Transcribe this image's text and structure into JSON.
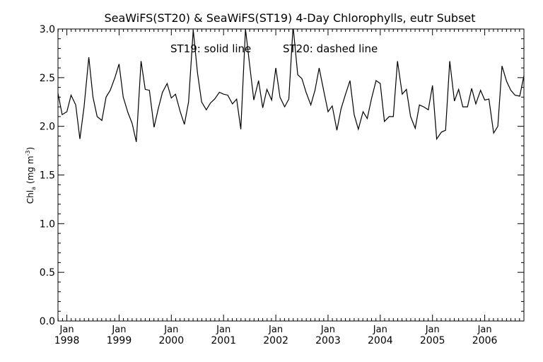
{
  "chart_data": {
    "type": "line",
    "title": "SeaWiFS(ST20) & SeaWiFS(ST19) 4-Day Chlorophylls, eutr Subset",
    "annotation_solid": "ST19: solid line",
    "annotation_dashed": "ST20: dashed line",
    "ylabel": "Chl",
    "ylabel_sub": "a",
    "ylabel_units": "(mg m",
    "ylabel_sup": "-3",
    "ylabel_close": ")",
    "ylim": [
      0,
      3.0
    ],
    "yticks": [
      "0.0",
      "0.5",
      "1.0",
      "1.5",
      "2.0",
      "2.5",
      "3.0"
    ],
    "xlim": [
      1997.83,
      2006.75
    ],
    "xticks": [
      {
        "month": "Jan",
        "year": "1998"
      },
      {
        "month": "Jan",
        "year": "1999"
      },
      {
        "month": "Jan",
        "year": "2000"
      },
      {
        "month": "Jan",
        "year": "2001"
      },
      {
        "month": "Jan",
        "year": "2002"
      },
      {
        "month": "Jan",
        "year": "2003"
      },
      {
        "month": "Jan",
        "year": "2004"
      },
      {
        "month": "Jan",
        "year": "2005"
      },
      {
        "month": "Jan",
        "year": "2006"
      }
    ],
    "grid": false,
    "series": [
      {
        "name": "ST19",
        "style": "solid",
        "x": [
          1997.83,
          1997.91,
          1998.0,
          1998.08,
          1998.17,
          1998.25,
          1998.33,
          1998.42,
          1998.5,
          1998.58,
          1998.67,
          1998.75,
          1998.83,
          1998.92,
          1999.0,
          1999.08,
          1999.17,
          1999.25,
          1999.33,
          1999.42,
          1999.5,
          1999.58,
          1999.67,
          1999.75,
          1999.83,
          1999.92,
          2000.0,
          2000.08,
          2000.17,
          2000.25,
          2000.33,
          2000.42,
          2000.5,
          2000.58,
          2000.67,
          2000.75,
          2000.83,
          2000.92,
          2001.0,
          2001.08,
          2001.17,
          2001.25,
          2001.33,
          2001.42,
          2001.5,
          2001.58,
          2001.67,
          2001.75,
          2001.83,
          2001.92,
          2002.0,
          2002.08,
          2002.17,
          2002.25,
          2002.33,
          2002.42,
          2002.5,
          2002.58,
          2002.67,
          2002.75,
          2002.83,
          2002.92,
          2003.0,
          2003.08,
          2003.17,
          2003.25,
          2003.33,
          2003.42,
          2003.5,
          2003.58,
          2003.67,
          2003.75,
          2003.83,
          2003.92,
          2004.0,
          2004.08,
          2004.17,
          2004.25,
          2004.33,
          2004.42,
          2004.5,
          2004.58,
          2004.67,
          2004.75,
          2004.83,
          2004.92,
          2005.0,
          2005.08,
          2005.17,
          2005.25,
          2005.33,
          2005.42,
          2005.5,
          2005.58,
          2005.67,
          2005.75,
          2005.83,
          2005.92,
          2006.0,
          2006.08,
          2006.17,
          2006.25,
          2006.33,
          2006.42,
          2006.5,
          2006.58,
          2006.67,
          2006.75
        ],
        "values": [
          2.34,
          2.12,
          2.15,
          2.32,
          2.22,
          1.87,
          2.2,
          2.71,
          2.3,
          2.1,
          2.06,
          2.3,
          2.37,
          2.5,
          2.64,
          2.3,
          2.14,
          2.03,
          1.84,
          2.67,
          2.38,
          2.37,
          1.99,
          2.18,
          2.35,
          2.44,
          2.29,
          2.33,
          2.15,
          2.02,
          2.25,
          2.99,
          2.55,
          2.25,
          2.17,
          2.24,
          2.28,
          2.35,
          2.33,
          2.32,
          2.23,
          2.28,
          1.97,
          3.0,
          2.63,
          2.27,
          2.47,
          2.19,
          2.38,
          2.27,
          2.6,
          2.3,
          2.2,
          2.28,
          3.03,
          2.53,
          2.49,
          2.35,
          2.22,
          2.37,
          2.6,
          2.36,
          2.15,
          2.21,
          1.96,
          2.18,
          2.32,
          2.47,
          2.12,
          1.97,
          2.15,
          2.08,
          2.28,
          2.47,
          2.44,
          2.05,
          2.1,
          2.1,
          2.67,
          2.33,
          2.38,
          2.1,
          1.98,
          2.22,
          2.2,
          2.17,
          2.42,
          1.87,
          1.94,
          1.96,
          2.67,
          2.26,
          2.38,
          2.2,
          2.2,
          2.39,
          2.23,
          2.37,
          2.27,
          2.28,
          1.93,
          2.0,
          2.62,
          2.46,
          2.37,
          2.32,
          2.31,
          2.52
        ]
      }
    ]
  }
}
